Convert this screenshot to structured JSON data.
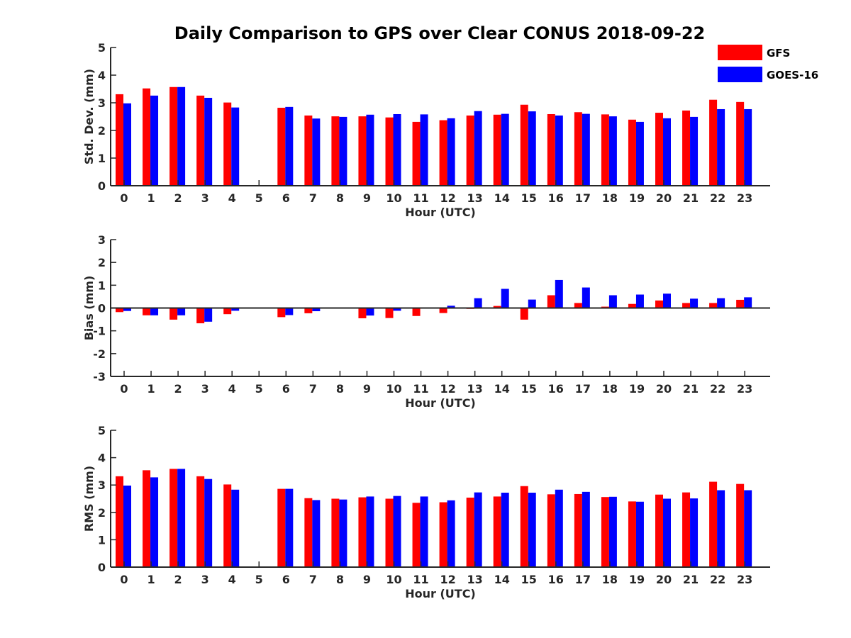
{
  "figure_title": "Daily Comparison to GPS over Clear CONUS 2018-09-22",
  "legend": {
    "entries": [
      {
        "name": "GFS",
        "color": "#ff0000"
      },
      {
        "name": "GOES-16",
        "color": "#0000ff"
      }
    ]
  },
  "chart_data": [
    {
      "type": "bar",
      "panel": "std",
      "title": "Daily Comparison to GPS over Clear CONUS 2018-09-22",
      "xlabel": "Hour (UTC)",
      "ylabel": "Std. Dev. (mm)",
      "ylim": [
        0,
        5
      ],
      "yticks": [
        0,
        1,
        2,
        3,
        4,
        5
      ],
      "categories": [
        "0",
        "1",
        "2",
        "3",
        "4",
        "5",
        "6",
        "7",
        "8",
        "9",
        "10",
        "11",
        "12",
        "13",
        "14",
        "15",
        "16",
        "17",
        "18",
        "19",
        "20",
        "21",
        "22",
        "23"
      ],
      "series": [
        {
          "name": "GFS",
          "color": "#ff0000",
          "values": [
            3.31,
            3.52,
            3.57,
            3.26,
            3.01,
            null,
            2.82,
            2.54,
            2.51,
            2.51,
            2.47,
            2.31,
            2.37,
            2.54,
            2.57,
            2.93,
            2.59,
            2.66,
            2.58,
            2.39,
            2.64,
            2.72,
            3.11,
            3.03
          ]
        },
        {
          "name": "GOES-16",
          "color": "#0000ff",
          "values": [
            2.98,
            3.26,
            3.57,
            3.18,
            2.83,
            null,
            2.85,
            2.43,
            2.49,
            2.57,
            2.59,
            2.58,
            2.44,
            2.7,
            2.6,
            2.69,
            2.54,
            2.6,
            2.51,
            2.31,
            2.44,
            2.49,
            2.77,
            2.77
          ]
        }
      ]
    },
    {
      "type": "bar",
      "panel": "bias",
      "xlabel": "Hour (UTC)",
      "ylabel": "Bias (mm)",
      "ylim": [
        -3,
        3
      ],
      "yticks": [
        -3,
        -2,
        -1,
        0,
        1,
        2,
        3
      ],
      "categories": [
        "0",
        "1",
        "2",
        "3",
        "4",
        "5",
        "6",
        "7",
        "8",
        "9",
        "10",
        "11",
        "12",
        "13",
        "14",
        "15",
        "16",
        "17",
        "18",
        "19",
        "20",
        "21",
        "22",
        "23"
      ],
      "series": [
        {
          "name": "GFS",
          "color": "#ff0000",
          "values": [
            -0.18,
            -0.32,
            -0.51,
            -0.67,
            -0.27,
            null,
            -0.4,
            -0.23,
            -0.03,
            -0.45,
            -0.44,
            -0.35,
            -0.22,
            -0.04,
            0.09,
            -0.51,
            0.56,
            0.22,
            0.06,
            0.18,
            0.33,
            0.22,
            0.22,
            0.36
          ]
        },
        {
          "name": "GOES-16",
          "color": "#0000ff",
          "values": [
            -0.13,
            -0.32,
            -0.32,
            -0.6,
            -0.12,
            null,
            -0.31,
            -0.14,
            -0.02,
            -0.33,
            -0.12,
            0.0,
            0.1,
            0.43,
            0.84,
            0.37,
            1.23,
            0.9,
            0.56,
            0.59,
            0.63,
            0.41,
            0.43,
            0.47
          ]
        }
      ]
    },
    {
      "type": "bar",
      "panel": "rms",
      "xlabel": "Hour (UTC)",
      "ylabel": "RMS (mm)",
      "ylim": [
        0,
        5
      ],
      "yticks": [
        0,
        1,
        2,
        3,
        4,
        5
      ],
      "categories": [
        "0",
        "1",
        "2",
        "3",
        "4",
        "5",
        "6",
        "7",
        "8",
        "9",
        "10",
        "11",
        "12",
        "13",
        "14",
        "15",
        "16",
        "17",
        "18",
        "19",
        "20",
        "21",
        "22",
        "23"
      ],
      "series": [
        {
          "name": "GFS",
          "color": "#ff0000",
          "values": [
            3.32,
            3.54,
            3.59,
            3.32,
            3.02,
            null,
            2.86,
            2.52,
            2.5,
            2.55,
            2.5,
            2.35,
            2.37,
            2.54,
            2.58,
            2.96,
            2.66,
            2.67,
            2.56,
            2.4,
            2.65,
            2.73,
            3.12,
            3.04
          ]
        },
        {
          "name": "GOES-16",
          "color": "#0000ff",
          "values": [
            2.98,
            3.28,
            3.59,
            3.22,
            2.83,
            null,
            2.86,
            2.45,
            2.47,
            2.58,
            2.6,
            2.58,
            2.44,
            2.73,
            2.72,
            2.72,
            2.83,
            2.75,
            2.57,
            2.39,
            2.5,
            2.51,
            2.81,
            2.81
          ]
        }
      ]
    }
  ]
}
